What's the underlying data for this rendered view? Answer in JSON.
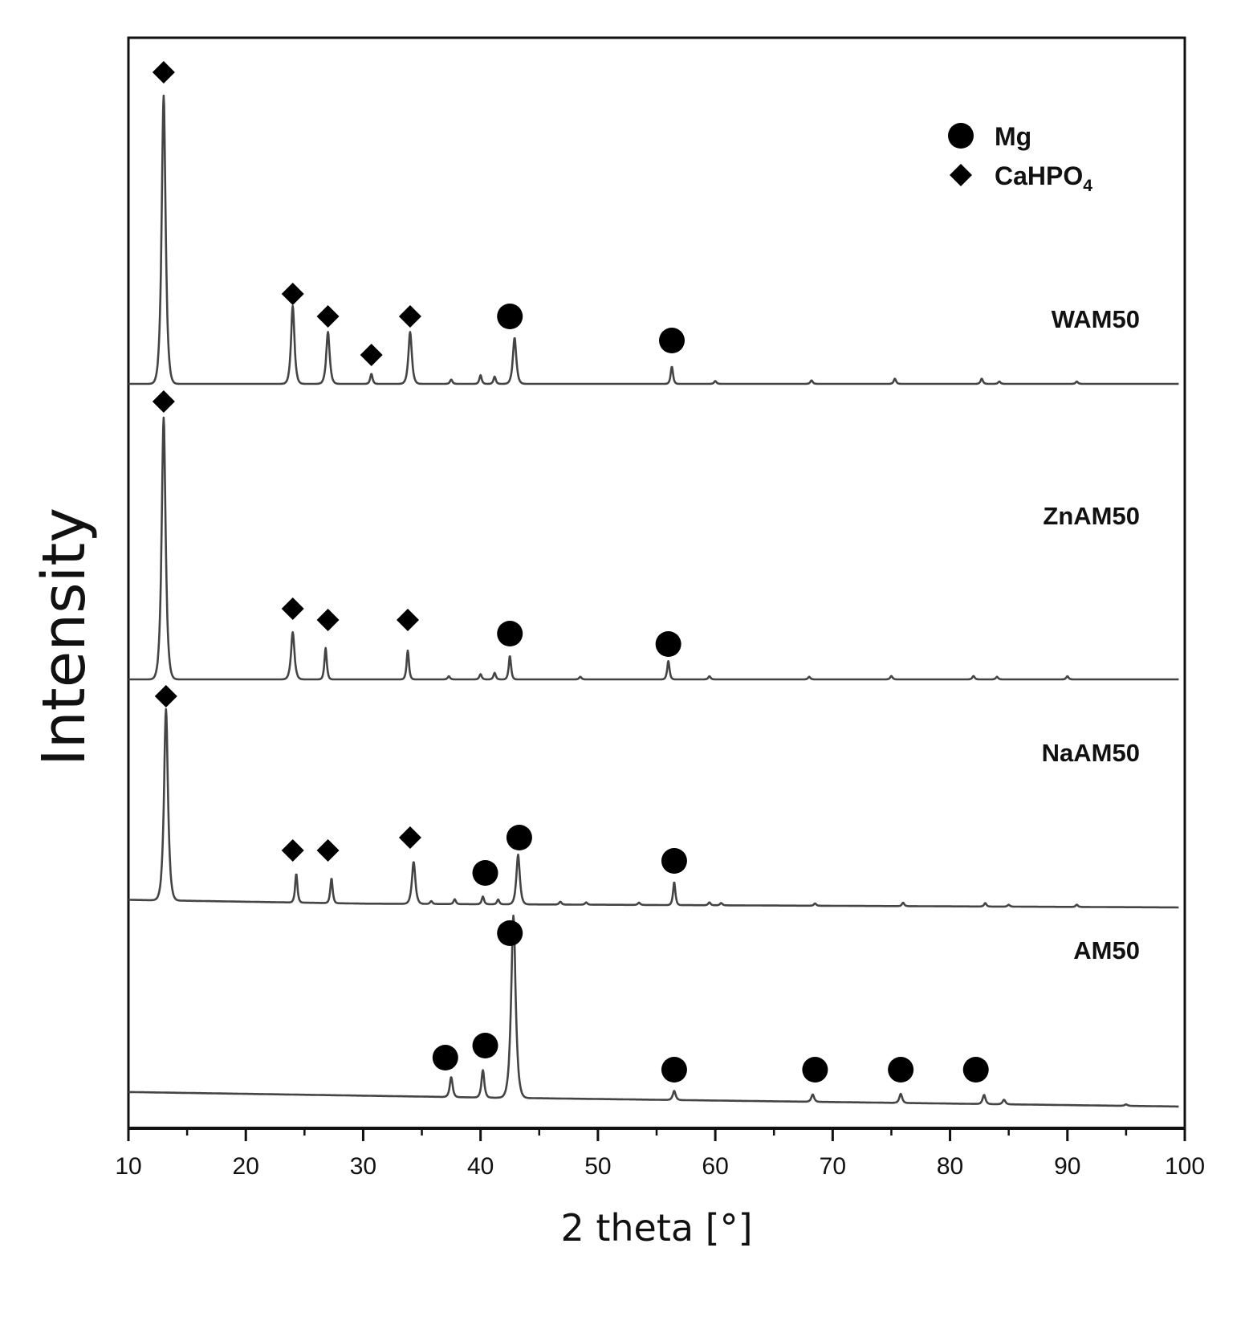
{
  "chart_data": {
    "type": "line",
    "title": "",
    "xlabel": "2 theta [°]",
    "ylabel": "Intensity",
    "xlim": [
      10,
      100
    ],
    "xticks": [
      10,
      20,
      30,
      40,
      50,
      60,
      70,
      80,
      90,
      100
    ],
    "y_ticks_shown": false,
    "legend": {
      "position": "top-right",
      "entries": [
        {
          "marker": "circle",
          "label": "Mg"
        },
        {
          "marker": "diamond",
          "label": "CaHPO",
          "subscript": "4"
        }
      ]
    },
    "trace_end": 99.5,
    "series": [
      {
        "name": "WAM50",
        "baseline": [
          [
            10,
            0
          ],
          [
            100,
            0
          ]
        ],
        "peaks": [
          [
            13.0,
            100
          ],
          [
            24.0,
            27
          ],
          [
            27.0,
            18
          ],
          [
            30.7,
            3.5
          ],
          [
            34.0,
            18
          ],
          [
            37.5,
            1.5
          ],
          [
            40.0,
            3
          ],
          [
            41.2,
            2.5
          ],
          [
            42.9,
            16
          ],
          [
            56.3,
            6
          ],
          [
            60.0,
            1
          ],
          [
            68.2,
            1.2
          ],
          [
            75.3,
            1.8
          ],
          [
            82.7,
            1.8
          ],
          [
            84.2,
            0.8
          ],
          [
            90.8,
            0.8
          ]
        ],
        "markers": [
          {
            "type": "diamond",
            "x": 13.0
          },
          {
            "type": "diamond",
            "x": 24.0
          },
          {
            "type": "diamond",
            "x": 27.0
          },
          {
            "type": "diamond",
            "x": 30.7
          },
          {
            "type": "diamond",
            "x": 34.0
          },
          {
            "type": "circle",
            "x": 42.5
          },
          {
            "type": "circle",
            "x": 56.3
          }
        ]
      },
      {
        "name": "ZnAM50",
        "baseline": [
          [
            10,
            0
          ],
          [
            100,
            0
          ]
        ],
        "peaks": [
          [
            13.0,
            100
          ],
          [
            24.0,
            18
          ],
          [
            26.8,
            12
          ],
          [
            33.8,
            11
          ],
          [
            37.3,
            1.2
          ],
          [
            40.0,
            2
          ],
          [
            41.2,
            2.5
          ],
          [
            42.5,
            9
          ],
          [
            48.5,
            1
          ],
          [
            56.0,
            7
          ],
          [
            59.5,
            1.2
          ],
          [
            68.0,
            1
          ],
          [
            75.0,
            1.3
          ],
          [
            82.0,
            1.3
          ],
          [
            84.0,
            1
          ],
          [
            90.0,
            1.2
          ]
        ],
        "markers": [
          {
            "type": "diamond",
            "x": 13.0
          },
          {
            "type": "diamond",
            "x": 24.0
          },
          {
            "type": "diamond",
            "x": 27.0
          },
          {
            "type": "diamond",
            "x": 33.8
          },
          {
            "type": "circle",
            "x": 42.5
          },
          {
            "type": "circle",
            "x": 56.0
          }
        ]
      },
      {
        "name": "NaAM50",
        "baseline": [
          [
            10,
            4
          ],
          [
            30,
            2
          ],
          [
            100,
            0
          ]
        ],
        "peaks": [
          [
            13.2,
            100
          ],
          [
            24.3,
            15
          ],
          [
            27.3,
            13
          ],
          [
            34.3,
            22
          ],
          [
            35.8,
            1.5
          ],
          [
            37.8,
            2.5
          ],
          [
            40.2,
            4
          ],
          [
            41.5,
            2.5
          ],
          [
            43.2,
            26
          ],
          [
            46.8,
            1.5
          ],
          [
            49.0,
            1.2
          ],
          [
            53.5,
            1.2
          ],
          [
            56.5,
            12
          ],
          [
            59.5,
            1.5
          ],
          [
            60.5,
            1.2
          ],
          [
            68.5,
            1.2
          ],
          [
            76.0,
            1.8
          ],
          [
            83.0,
            1.8
          ],
          [
            85.0,
            1
          ],
          [
            90.8,
            1.2
          ]
        ],
        "markers": [
          {
            "type": "diamond",
            "x": 13.2
          },
          {
            "type": "diamond",
            "x": 24.0
          },
          {
            "type": "diamond",
            "x": 27.0
          },
          {
            "type": "diamond",
            "x": 34.0
          },
          {
            "type": "circle",
            "x": 40.4
          },
          {
            "type": "circle",
            "x": 43.3
          },
          {
            "type": "circle",
            "x": 56.5
          }
        ]
      },
      {
        "name": "AM50",
        "baseline": [
          [
            10,
            8
          ],
          [
            40,
            5
          ],
          [
            100,
            0
          ]
        ],
        "peaks": [
          [
            37.5,
            11
          ],
          [
            40.2,
            15
          ],
          [
            42.8,
            100
          ],
          [
            56.5,
            5
          ],
          [
            68.3,
            4
          ],
          [
            75.8,
            5
          ],
          [
            82.9,
            5
          ],
          [
            84.6,
            2.5
          ],
          [
            95.0,
            0.8
          ]
        ],
        "markers": [
          {
            "type": "circle",
            "x": 37.0
          },
          {
            "type": "circle",
            "x": 40.4
          },
          {
            "type": "circle",
            "x": 42.5
          },
          {
            "type": "circle",
            "x": 56.5
          },
          {
            "type": "circle",
            "x": 68.5
          },
          {
            "type": "circle",
            "x": 75.8
          },
          {
            "type": "circle",
            "x": 82.2
          }
        ]
      }
    ]
  }
}
